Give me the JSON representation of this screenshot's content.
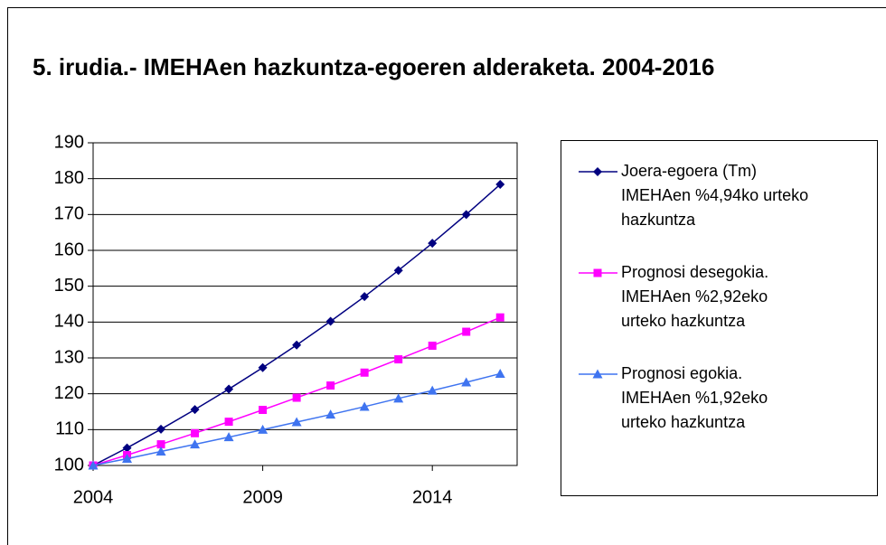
{
  "chart_data": {
    "type": "line",
    "title": "5. irudia.- IMEHAen hazkuntza-egoeren alderaketa. 2004-2016",
    "x": [
      2004,
      2005,
      2006,
      2007,
      2008,
      2009,
      2010,
      2011,
      2012,
      2013,
      2014,
      2015,
      2016
    ],
    "series": [
      {
        "name": "Joera-egoera (Tm) IMEHAen %4,94ko urteko hazkuntza",
        "color": "#000080",
        "marker": "diamond",
        "values": [
          100,
          104.9,
          110.1,
          115.6,
          121.3,
          127.3,
          133.6,
          140.2,
          147.1,
          154.4,
          162.0,
          170.0,
          178.4
        ]
      },
      {
        "name": "Prognosi desegokia. IMEHAen %2,92eko urteko hazkuntza",
        "color": "#ff00ff",
        "marker": "square",
        "values": [
          100,
          102.9,
          105.9,
          109.0,
          112.2,
          115.5,
          118.9,
          122.3,
          125.9,
          129.6,
          133.4,
          137.3,
          141.3
        ]
      },
      {
        "name": "Prognosi egokia. IMEHAen %1,92eko urteko hazkuntza",
        "color": "#3f74f0",
        "marker": "triangle",
        "values": [
          100,
          101.9,
          103.9,
          105.9,
          107.9,
          110.0,
          112.1,
          114.2,
          116.4,
          118.7,
          120.9,
          123.2,
          125.6
        ]
      }
    ],
    "xlim": [
      2004,
      2016.5
    ],
    "xticks": [
      2004,
      2009,
      2014
    ],
    "ylim": [
      100,
      190
    ],
    "yticks": [
      100,
      110,
      120,
      130,
      140,
      150,
      160,
      170,
      180,
      190
    ],
    "grid": true,
    "legend": "right"
  }
}
